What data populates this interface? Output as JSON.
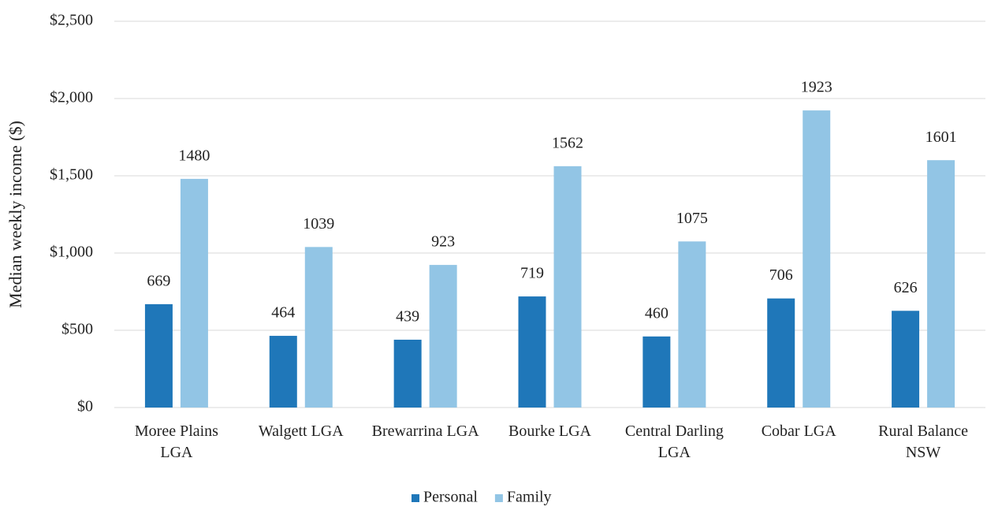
{
  "chart_data": {
    "type": "bar",
    "y_label": "Median weekly income ($)",
    "categories": [
      "Moree Plains LGA",
      "Walgett LGA",
      "Brewarrina LGA",
      "Bourke LGA",
      "Central Darling LGA",
      "Cobar LGA",
      "Rural Balance NSW"
    ],
    "series": [
      {
        "name": "Personal",
        "color": "#1f77b9",
        "values": [
          669,
          464,
          439,
          719,
          460,
          706,
          626
        ]
      },
      {
        "name": "Family",
        "color": "#92c5e5",
        "values": [
          1480,
          1039,
          923,
          1562,
          1075,
          1923,
          1601
        ]
      }
    ],
    "ylim": [
      0,
      2500
    ],
    "yticks": [
      {
        "value": 0,
        "label": "$0"
      },
      {
        "value": 500,
        "label": "$500"
      },
      {
        "value": 1000,
        "label": "$1,000"
      },
      {
        "value": 1500,
        "label": "$1,500"
      },
      {
        "value": 2000,
        "label": "$2,000"
      },
      {
        "value": 2500,
        "label": "$2,500"
      }
    ],
    "grid": true,
    "legend": "bottom"
  }
}
